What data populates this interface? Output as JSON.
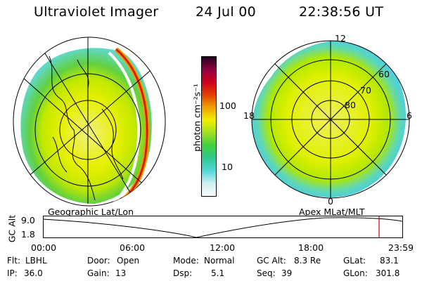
{
  "header": {
    "instrument": "Ultraviolet Imager",
    "date": "24 Jul 00",
    "time": "22:38:56 UT"
  },
  "left_panel": {
    "caption": "Geographic Lat/Lon"
  },
  "right_panel": {
    "caption": "Apex MLat/MLT",
    "mlt_labels": [
      "12",
      "18",
      "6",
      "0"
    ],
    "lat_labels": [
      "60",
      "70",
      "80"
    ]
  },
  "colorbar": {
    "unit_label": "photon cm⁻²s⁻¹",
    "ticks": [
      "100",
      "10"
    ],
    "colors": [
      "#fbfbfb",
      "#d0eef0",
      "#50d8d8",
      "#30c890",
      "#40d040",
      "#a0e020",
      "#f0f000",
      "#f0a000",
      "#e04000",
      "#d00020",
      "#900040",
      "#200020"
    ]
  },
  "altitude_plot": {
    "ylabel": "GC Alt",
    "ymax": "9.0",
    "ymin": "1.8",
    "x_ticks": [
      "00:00",
      "06:00",
      "12:00",
      "18:00",
      "23:59"
    ],
    "current_time_marker_color": "#c00000"
  },
  "status": {
    "filter_label": "Flt:",
    "filter_value": "LBHL",
    "door_label": "Door:",
    "door_value": "Open",
    "mode_label": "Mode:",
    "mode_value": "Normal",
    "gcalt_label": "GC Alt:",
    "gcalt_value": "8.3 Re",
    "glat_label": "GLat:",
    "glat_value": "83.1",
    "ip_label": "IP:",
    "ip_value": "36.0",
    "gain_label": "Gain:",
    "gain_value": "13",
    "dsp_label": "Dsp:",
    "dsp_value": "5.1",
    "seq_label": "Seq:",
    "seq_value": "39",
    "glon_label": "GLon:",
    "glon_value": "301.8"
  }
}
